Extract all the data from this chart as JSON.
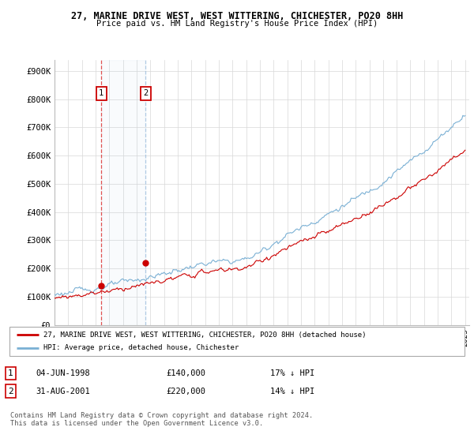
{
  "title": "27, MARINE DRIVE WEST, WEST WITTERING, CHICHESTER, PO20 8HH",
  "subtitle": "Price paid vs. HM Land Registry's House Price Index (HPI)",
  "ylim": [
    0,
    950000
  ],
  "yticks": [
    0,
    100000,
    200000,
    300000,
    400000,
    500000,
    600000,
    700000,
    800000,
    900000
  ],
  "ytick_labels": [
    "£0",
    "£100K",
    "£200K",
    "£300K",
    "£400K",
    "£500K",
    "£600K",
    "£700K",
    "£800K",
    "£900K"
  ],
  "sale1_date": 1998.42,
  "sale1_price": 140000,
  "sale1_label": "1",
  "sale2_date": 2001.66,
  "sale2_price": 220000,
  "sale2_label": "2",
  "property_color": "#cc0000",
  "hpi_color": "#7ab0d4",
  "legend_property": "27, MARINE DRIVE WEST, WEST WITTERING, CHICHESTER, PO20 8HH (detached house)",
  "legend_hpi": "HPI: Average price, detached house, Chichester",
  "footer": "Contains HM Land Registry data © Crown copyright and database right 2024.\nThis data is licensed under the Open Government Licence v3.0.",
  "xstart": 1995,
  "xend": 2025
}
